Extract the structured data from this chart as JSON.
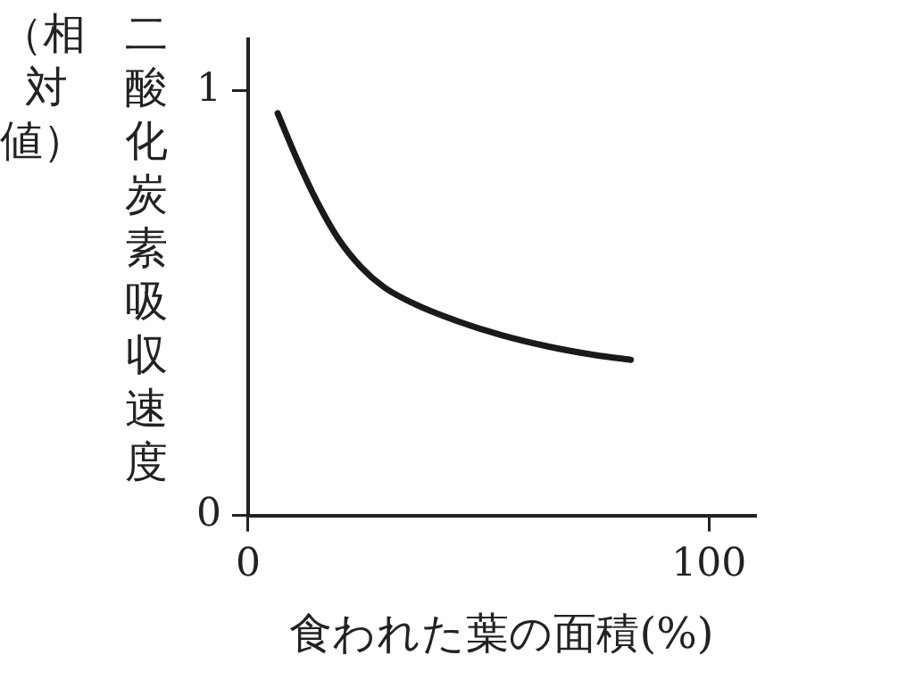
{
  "chart_data": {
    "type": "line",
    "xlabel": "食われた葉の面積(%)",
    "ylabel": "二酸化炭素吸収速度（相対値）",
    "x": [
      6.4,
      10.6,
      15,
      19.5,
      24.6,
      29.6,
      36,
      44.9,
      55,
      65.3,
      75.4,
      83
    ],
    "series": [
      {
        "color": "#1a1a1a",
        "values": [
          0.946,
          0.838,
          0.737,
          0.652,
          0.583,
          0.536,
          0.498,
          0.459,
          0.424,
          0.397,
          0.377,
          0.366
        ]
      }
    ],
    "xlim": [
      0,
      110
    ],
    "xticks": [
      0,
      100
    ],
    "ylim": [
      0,
      1.12
    ],
    "yticks": [
      0,
      1
    ],
    "grid": false,
    "legend": false,
    "marker": "none",
    "line_style": "solid"
  }
}
